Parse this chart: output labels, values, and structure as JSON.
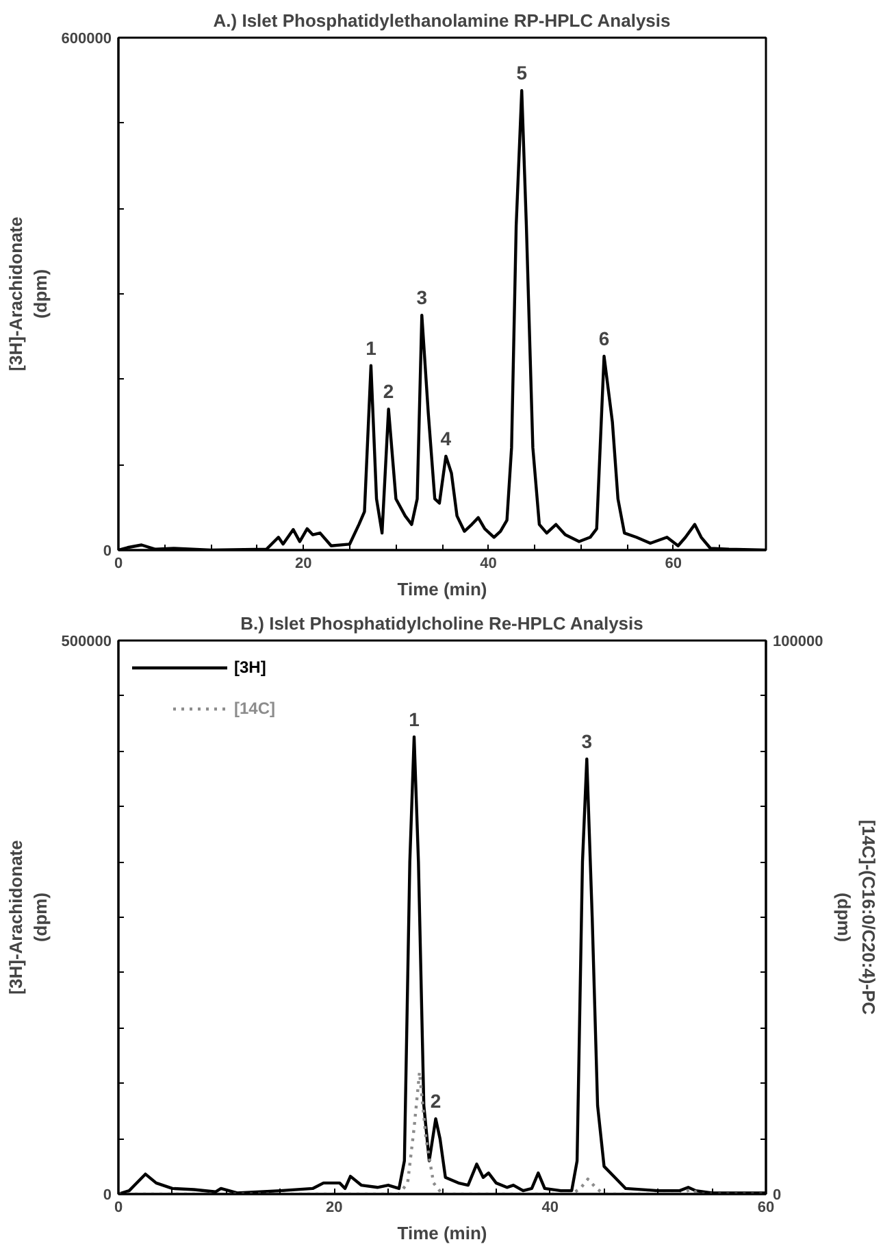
{
  "chart_data": [
    {
      "type": "line",
      "title": "A.) Islet Phosphatidylethanolamine RP-HPLC Analysis",
      "xlabel": "Time (min)",
      "ylabel": "[3H]-Arachidonate\n(dpm)",
      "grid": false,
      "legend": false,
      "line_style": "solid",
      "marker": "none",
      "xlim": [
        0,
        70
      ],
      "ylim": [
        0,
        600000
      ],
      "xticks": [
        0,
        {
          "value": 5,
          "label": null
        },
        {
          "value": 10,
          "label": null
        },
        {
          "value": 15,
          "label": null
        },
        20,
        {
          "value": 25,
          "label": null
        },
        {
          "value": 30,
          "label": null
        },
        {
          "value": 35,
          "label": null
        },
        40,
        {
          "value": 45,
          "label": null
        },
        {
          "value": 50,
          "label": null
        },
        {
          "value": 55,
          "label": null
        },
        60,
        {
          "value": 65,
          "label": null
        },
        {
          "value": 70,
          "label": null
        }
      ],
      "yticks": [
        0,
        {
          "value": 100000,
          "label": null
        },
        {
          "value": 200000,
          "label": null
        },
        {
          "value": 300000,
          "label": null
        },
        {
          "value": 400000,
          "label": null
        },
        {
          "value": 500000,
          "label": null
        },
        600000
      ],
      "series": [
        {
          "color": "#000000",
          "x": [
            0,
            1,
            2.5,
            4,
            6,
            8,
            10,
            16,
            17.3,
            17.8,
            18.9,
            19.6,
            20.4,
            21,
            21.8,
            23,
            25,
            26,
            26.6,
            27.3,
            27.9,
            28.5,
            29.2,
            30,
            31,
            31.7,
            32.3,
            32.8,
            33.5,
            34.2,
            34.7,
            35.4,
            36,
            36.6,
            37.4,
            38.2,
            38.9,
            39.6,
            40.6,
            41.3,
            42,
            42.5,
            43,
            43.6,
            44.1,
            44.8,
            45.5,
            46.3,
            47.3,
            48.3,
            49.8,
            51,
            51.7,
            52.5,
            53.4,
            54,
            54.7,
            56,
            57.5,
            59.3,
            60.5,
            61.3,
            62.3,
            63,
            64,
            66,
            70
          ],
          "values": [
            0,
            3000,
            6000,
            1000,
            2000,
            1000,
            0,
            1000,
            15000,
            7000,
            24000,
            10000,
            25000,
            18000,
            20000,
            5000,
            7000,
            30000,
            45000,
            216000,
            60000,
            20000,
            165000,
            60000,
            40000,
            30000,
            60000,
            275000,
            160000,
            60000,
            55000,
            110000,
            90000,
            40000,
            22000,
            30000,
            38000,
            25000,
            15000,
            22000,
            35000,
            120000,
            380000,
            538000,
            380000,
            120000,
            30000,
            20000,
            30000,
            18000,
            10000,
            15000,
            25000,
            227000,
            150000,
            60000,
            20000,
            15000,
            8000,
            15000,
            5000,
            15000,
            30000,
            15000,
            2000,
            1000,
            0
          ]
        }
      ],
      "annotations": [
        {
          "text": "1",
          "x": 27.3,
          "y": 216000
        },
        {
          "text": "2",
          "x": 29.2,
          "y": 165000
        },
        {
          "text": "3",
          "x": 32.8,
          "y": 275000
        },
        {
          "text": "4",
          "x": 35.4,
          "y": 110000
        },
        {
          "text": "5",
          "x": 43.6,
          "y": 538000
        },
        {
          "text": "6",
          "x": 52.5,
          "y": 227000
        }
      ]
    },
    {
      "type": "line",
      "title": "B.) Islet Phosphatidylcholine Re-HPLC Analysis",
      "xlabel": "Time (min)",
      "ylabel": "[3H]-Arachidonate\n(dpm)",
      "y2label": "[14C]-(C16:0/C20:4)-PC\n(dpm)",
      "grid": false,
      "legend": "top left",
      "marker": "none",
      "xlim": [
        0,
        60
      ],
      "ylim": [
        0,
        500000
      ],
      "y2lim": [
        0,
        100000
      ],
      "xticks": [
        0,
        {
          "value": 5,
          "label": null
        },
        {
          "value": 10,
          "label": null
        },
        {
          "value": 15,
          "label": null
        },
        20,
        {
          "value": 25,
          "label": null
        },
        {
          "value": 30,
          "label": null
        },
        {
          "value": 35,
          "label": null
        },
        40,
        {
          "value": 45,
          "label": null
        },
        {
          "value": 50,
          "label": null
        },
        {
          "value": 55,
          "label": null
        },
        60
      ],
      "yticks": [
        0,
        {
          "value": 50000,
          "label": null
        },
        {
          "value": 100000,
          "label": null
        },
        {
          "value": 150000,
          "label": null
        },
        {
          "value": 200000,
          "label": null
        },
        {
          "value": 250000,
          "label": null
        },
        {
          "value": 300000,
          "label": null
        },
        {
          "value": 350000,
          "label": null
        },
        {
          "value": 400000,
          "label": null
        },
        {
          "value": 450000,
          "label": null
        },
        500000
      ],
      "y2ticks": [
        0,
        {
          "value": 10000,
          "label": null
        },
        {
          "value": 20000,
          "label": null
        },
        {
          "value": 30000,
          "label": null
        },
        {
          "value": 40000,
          "label": null
        },
        {
          "value": 50000,
          "label": null
        },
        {
          "value": 60000,
          "label": null
        },
        {
          "value": 70000,
          "label": null
        },
        {
          "value": 80000,
          "label": null
        },
        {
          "value": 90000,
          "label": null
        },
        100000
      ],
      "series": [
        {
          "name": "[3H]",
          "color": "#000000",
          "line_style": "solid",
          "x": [
            0,
            1,
            1.5,
            2.5,
            3.5,
            5,
            7,
            9,
            9.5,
            11,
            15,
            18,
            19,
            20.5,
            21,
            21.5,
            22.5,
            24,
            25,
            26,
            26.5,
            27,
            27.4,
            27.8,
            28.3,
            28.8,
            29.4,
            29.8,
            30.3,
            31.5,
            32.4,
            33.2,
            33.8,
            34.3,
            35,
            36,
            36.6,
            37.5,
            38.3,
            38.9,
            39.5,
            41,
            42,
            42.5,
            43,
            43.4,
            43.9,
            44.4,
            45,
            46,
            47,
            50,
            52,
            52.8,
            53.5,
            55,
            60
          ],
          "values": [
            0,
            3000,
            8000,
            18000,
            10000,
            5000,
            4000,
            2000,
            5000,
            1000,
            3000,
            5000,
            10000,
            10000,
            5000,
            16000,
            8000,
            6000,
            8000,
            5000,
            30000,
            300000,
            413000,
            300000,
            80000,
            30000,
            68000,
            50000,
            15000,
            10000,
            8000,
            27000,
            15000,
            19000,
            10000,
            6000,
            8000,
            3000,
            5000,
            19000,
            5000,
            3000,
            3000,
            30000,
            300000,
            393000,
            250000,
            80000,
            25000,
            15000,
            5000,
            3000,
            3000,
            6000,
            3000,
            1000,
            1000
          ]
        },
        {
          "name": "[14C]",
          "color": "#8c8c8c",
          "line_style": "dotted",
          "axis": "y2",
          "x": [
            0,
            20,
            26,
            26.8,
            27.4,
            27.9,
            28.5,
            29.2,
            30,
            42,
            42.8,
            43.5,
            44.3,
            45,
            52,
            53,
            54,
            60
          ],
          "values": [
            0,
            0,
            0,
            2000,
            12000,
            22000,
            10000,
            2000,
            0,
            0,
            1000,
            2700,
            1000,
            0,
            0,
            800,
            0,
            0
          ]
        }
      ],
      "annotations": [
        {
          "text": "1",
          "x": 27.4,
          "y": 413000
        },
        {
          "text": "2",
          "x": 29.4,
          "y": 68000
        },
        {
          "text": "3",
          "x": 43.4,
          "y": 393000
        }
      ]
    }
  ]
}
